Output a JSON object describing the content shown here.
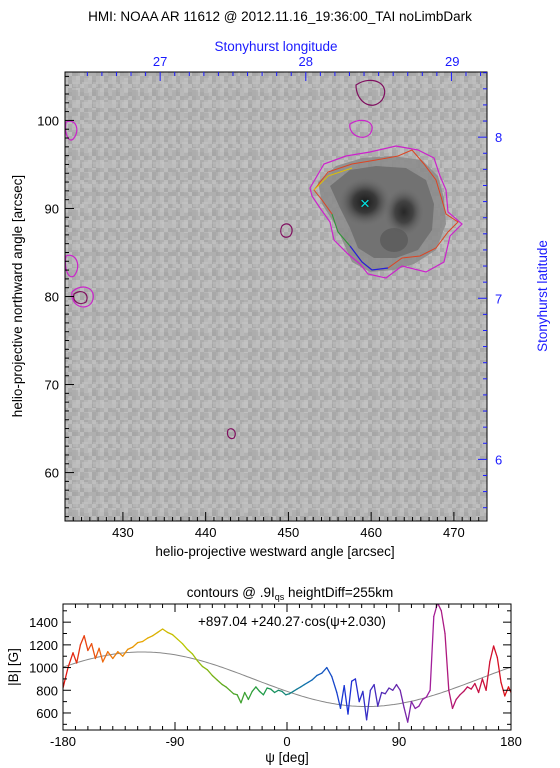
{
  "chart_data": [
    {
      "type": "heatmap",
      "title": "HMI: NOAA AR 11612 @ 2012.11.16_19:36:00_TAI noLimbDark",
      "xlabel": "helio-projective westward angle [arcsec]",
      "ylabel": "helio-projective northward angle [arcsec]",
      "xlim": [
        423,
        474
      ],
      "ylim": [
        54.5,
        105.5
      ],
      "xticks": [
        "430",
        "440",
        "450",
        "460",
        "470"
      ],
      "yticks": [
        "60",
        "70",
        "80",
        "90",
        "100"
      ],
      "top_axis": {
        "label": "Stonyhurst longitude",
        "ticks": [
          "27",
          "28",
          "29"
        ],
        "tick_x": [
          434.5,
          452.1,
          469.8
        ]
      },
      "right_axis": {
        "label": "Stonyhurst latitude",
        "ticks": [
          "6",
          "7",
          "8"
        ],
        "tick_y": [
          61.5,
          79.8,
          98.1
        ]
      },
      "marker": {
        "symbol": "×",
        "x": 456.5,
        "y": 90.2,
        "color": "#00e5e5"
      },
      "colors": {
        "secondary_axes": "#1a1aff",
        "contour": "#b000b0"
      }
    },
    {
      "type": "line",
      "title": "contours @ .9I",
      "title_sub": "qs",
      "title_suffix": " heightDiff=255km",
      "annotation": "+897.04 +240.27·cos(ψ+2.030)",
      "xlabel": "ψ [deg]",
      "ylabel": "|B| [G]",
      "xlim": [
        -180,
        180
      ],
      "ylim": [
        450,
        1560
      ],
      "xticks": [
        "-180",
        "-90",
        "0",
        "90",
        "180"
      ],
      "yticks": [
        "600",
        "800",
        "1000",
        "1200",
        "1400"
      ],
      "fit": {
        "offset": 897.04,
        "amplitude": 240.27,
        "phase_rad": 2.03,
        "color": "#888888"
      },
      "series_points": [
        [
          -180,
          820
        ],
        [
          -176,
          1000
        ],
        [
          -172,
          1130
        ],
        [
          -169,
          1040
        ],
        [
          -166,
          1200
        ],
        [
          -163,
          1280
        ],
        [
          -160,
          1150
        ],
        [
          -157,
          1210
        ],
        [
          -154,
          1080
        ],
        [
          -151,
          1170
        ],
        [
          -148,
          1050
        ],
        [
          -144,
          1140
        ],
        [
          -140,
          1080
        ],
        [
          -136,
          1140
        ],
        [
          -132,
          1100
        ],
        [
          -128,
          1160
        ],
        [
          -124,
          1180
        ],
        [
          -120,
          1220
        ],
        [
          -116,
          1230
        ],
        [
          -112,
          1260
        ],
        [
          -108,
          1280
        ],
        [
          -104,
          1310
        ],
        [
          -100,
          1340
        ],
        [
          -96,
          1310
        ],
        [
          -92,
          1290
        ],
        [
          -88,
          1250
        ],
        [
          -84,
          1210
        ],
        [
          -80,
          1160
        ],
        [
          -76,
          1120
        ],
        [
          -72,
          1060
        ],
        [
          -68,
          1010
        ],
        [
          -64,
          980
        ],
        [
          -60,
          930
        ],
        [
          -56,
          890
        ],
        [
          -52,
          850
        ],
        [
          -49,
          830
        ],
        [
          -46,
          800
        ],
        [
          -43,
          770
        ],
        [
          -40,
          760
        ],
        [
          -37,
          690
        ],
        [
          -34,
          780
        ],
        [
          -31,
          720
        ],
        [
          -28,
          790
        ],
        [
          -25,
          830
        ],
        [
          -22,
          790
        ],
        [
          -19,
          760
        ],
        [
          -16,
          820
        ],
        [
          -13,
          810
        ],
        [
          -10,
          780
        ],
        [
          -7,
          800
        ],
        [
          -4,
          790
        ],
        [
          -1,
          760
        ],
        [
          2,
          770
        ],
        [
          5,
          790
        ],
        [
          8,
          810
        ],
        [
          11,
          830
        ],
        [
          14,
          850
        ],
        [
          17,
          870
        ],
        [
          20,
          890
        ],
        [
          24,
          930
        ],
        [
          28,
          950
        ],
        [
          32,
          1000
        ],
        [
          36,
          920
        ],
        [
          40,
          780
        ],
        [
          43,
          640
        ],
        [
          46,
          840
        ],
        [
          49,
          590
        ],
        [
          52,
          880
        ],
        [
          55,
          900
        ],
        [
          58,
          700
        ],
        [
          61,
          790
        ],
        [
          64,
          540
        ],
        [
          67,
          800
        ],
        [
          70,
          850
        ],
        [
          73,
          660
        ],
        [
          76,
          780
        ],
        [
          79,
          770
        ],
        [
          82,
          820
        ],
        [
          85,
          800
        ],
        [
          88,
          850
        ],
        [
          91,
          800
        ],
        [
          94,
          650
        ],
        [
          97,
          520
        ],
        [
          100,
          700
        ],
        [
          103,
          640
        ],
        [
          106,
          660
        ],
        [
          109,
          720
        ],
        [
          112,
          740
        ],
        [
          115,
          800
        ],
        [
          118,
          1450
        ],
        [
          121,
          1570
        ],
        [
          124,
          1500
        ],
        [
          127,
          1300
        ],
        [
          130,
          800
        ],
        [
          133,
          640
        ],
        [
          136,
          720
        ],
        [
          139,
          760
        ],
        [
          142,
          790
        ],
        [
          145,
          830
        ],
        [
          148,
          810
        ],
        [
          151,
          860
        ],
        [
          154,
          780
        ],
        [
          157,
          900
        ],
        [
          160,
          800
        ],
        [
          163,
          1050
        ],
        [
          166,
          1190
        ],
        [
          169,
          1090
        ],
        [
          172,
          870
        ],
        [
          175,
          750
        ],
        [
          178,
          830
        ],
        [
          180,
          780
        ]
      ],
      "rainbow_colors": [
        "#e01010",
        "#ee6a10",
        "#e8a800",
        "#b8c800",
        "#5aa820",
        "#1a9a4a",
        "#1070b0",
        "#1a30d8",
        "#5a2ab0",
        "#a020a0",
        "#c01050",
        "#e01010"
      ]
    }
  ]
}
